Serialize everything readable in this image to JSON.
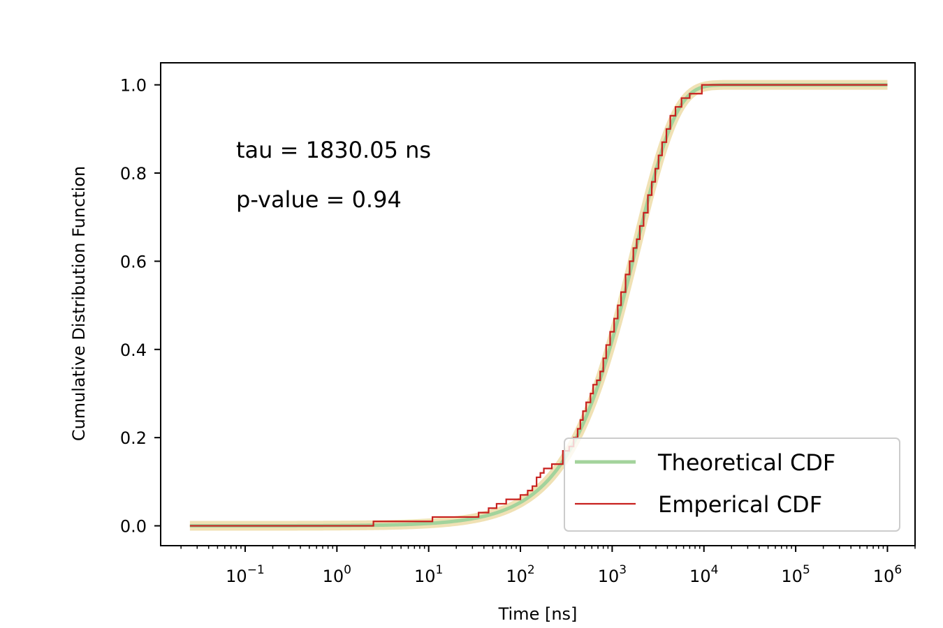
{
  "chart_data": {
    "type": "line",
    "title": "",
    "xlabel": "Time [ns]",
    "ylabel": "Cumulative Distribution Function",
    "xscale": "log",
    "xlim": [
      0.012,
      2000000
    ],
    "ylim": [
      -0.045,
      1.05
    ],
    "xticks": [
      {
        "value": 0.1,
        "base": "10",
        "exp": "−1"
      },
      {
        "value": 1,
        "base": "10",
        "exp": "0"
      },
      {
        "value": 10,
        "base": "10",
        "exp": "1"
      },
      {
        "value": 100,
        "base": "10",
        "exp": "2"
      },
      {
        "value": 1000,
        "base": "10",
        "exp": "3"
      },
      {
        "value": 10000,
        "base": "10",
        "exp": "4"
      },
      {
        "value": 100000,
        "base": "10",
        "exp": "5"
      },
      {
        "value": 1000000,
        "base": "10",
        "exp": "6"
      }
    ],
    "yticks": [
      {
        "value": 0.0,
        "label": "0.0"
      },
      {
        "value": 0.2,
        "label": "0.2"
      },
      {
        "value": 0.4,
        "label": "0.4"
      },
      {
        "value": 0.6,
        "label": "0.6"
      },
      {
        "value": 0.8,
        "label": "0.8"
      },
      {
        "value": 1.0,
        "label": "1.0"
      }
    ],
    "grid": false,
    "legend_position": "lower-right",
    "annotations": [
      "tau = 1830.05 ns",
      "p-value = 0.94"
    ],
    "tau": 1830.05,
    "series": [
      {
        "name": "Theoretical CDF",
        "kind": "exponential-cdf",
        "color": "#a3d39c",
        "band_color": "#f0e1b4",
        "x_range": [
          0.025,
          1000000
        ]
      },
      {
        "name": "Emperical CDF",
        "kind": "step",
        "color": "#c8201e",
        "points": [
          [
            0.025,
            0.0
          ],
          [
            2.5,
            0.01
          ],
          [
            11,
            0.02
          ],
          [
            35,
            0.03
          ],
          [
            45,
            0.04
          ],
          [
            55,
            0.05
          ],
          [
            70,
            0.06
          ],
          [
            100,
            0.07
          ],
          [
            120,
            0.08
          ],
          [
            135,
            0.09
          ],
          [
            150,
            0.11
          ],
          [
            165,
            0.12
          ],
          [
            180,
            0.13
          ],
          [
            220,
            0.14
          ],
          [
            290,
            0.17
          ],
          [
            340,
            0.18
          ],
          [
            380,
            0.2
          ],
          [
            420,
            0.22
          ],
          [
            450,
            0.24
          ],
          [
            480,
            0.26
          ],
          [
            520,
            0.28
          ],
          [
            580,
            0.3
          ],
          [
            620,
            0.32
          ],
          [
            680,
            0.33
          ],
          [
            740,
            0.35
          ],
          [
            800,
            0.38
          ],
          [
            860,
            0.41
          ],
          [
            950,
            0.44
          ],
          [
            1050,
            0.47
          ],
          [
            1150,
            0.5
          ],
          [
            1250,
            0.53
          ],
          [
            1400,
            0.57
          ],
          [
            1550,
            0.6
          ],
          [
            1700,
            0.63
          ],
          [
            1850,
            0.65
          ],
          [
            2000,
            0.68
          ],
          [
            2200,
            0.71
          ],
          [
            2450,
            0.75
          ],
          [
            2700,
            0.78
          ],
          [
            2950,
            0.81
          ],
          [
            3200,
            0.84
          ],
          [
            3500,
            0.87
          ],
          [
            3900,
            0.9
          ],
          [
            4300,
            0.93
          ],
          [
            4900,
            0.95
          ],
          [
            5700,
            0.97
          ],
          [
            7000,
            0.98
          ],
          [
            9500,
            1.0
          ],
          [
            1000000,
            1.0
          ]
        ]
      }
    ]
  }
}
